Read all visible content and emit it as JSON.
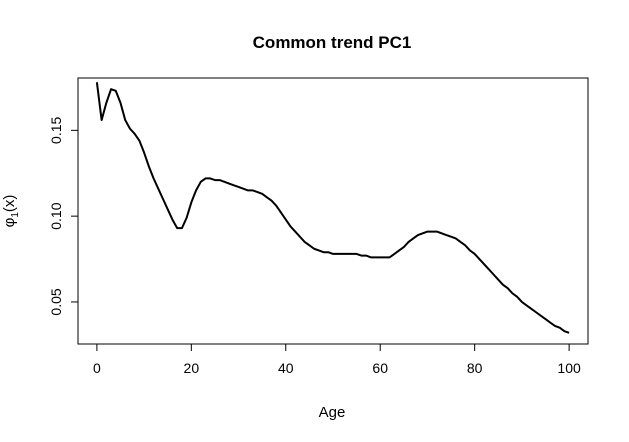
{
  "chart_data": {
    "type": "line",
    "title": "Common trend PC1",
    "xlabel": "Age",
    "ylabel": "φ1(x)",
    "xlim": [
      -4,
      104
    ],
    "ylim": [
      0.0255,
      0.1805
    ],
    "xticks": [
      0,
      20,
      40,
      60,
      80,
      100
    ],
    "yticks": [
      0.05,
      0.1,
      0.15
    ],
    "xtick_labels": [
      "0",
      "20",
      "40",
      "60",
      "80",
      "100"
    ],
    "ytick_labels": [
      "0.05",
      "0.10",
      "0.15"
    ],
    "grid": false,
    "series": [
      {
        "color": "#000000",
        "x": [
          0,
          1,
          2,
          3,
          4,
          5,
          6,
          7,
          8,
          9,
          10,
          11,
          12,
          13,
          14,
          15,
          16,
          17,
          18,
          19,
          20,
          21,
          22,
          23,
          24,
          25,
          26,
          27,
          28,
          29,
          30,
          31,
          32,
          33,
          34,
          35,
          36,
          37,
          38,
          39,
          40,
          41,
          42,
          43,
          44,
          45,
          46,
          47,
          48,
          49,
          50,
          51,
          52,
          53,
          54,
          55,
          56,
          57,
          58,
          59,
          60,
          61,
          62,
          63,
          64,
          65,
          66,
          67,
          68,
          69,
          70,
          71,
          72,
          73,
          74,
          75,
          76,
          77,
          78,
          79,
          80,
          81,
          82,
          83,
          84,
          85,
          86,
          87,
          88,
          89,
          90,
          91,
          92,
          93,
          94,
          95,
          96,
          97,
          98,
          99,
          100
        ],
        "y": [
          0.178,
          0.156,
          0.166,
          0.174,
          0.173,
          0.166,
          0.156,
          0.151,
          0.148,
          0.144,
          0.137,
          0.129,
          0.122,
          0.116,
          0.11,
          0.104,
          0.098,
          0.093,
          0.093,
          0.099,
          0.108,
          0.115,
          0.12,
          0.122,
          0.122,
          0.121,
          0.121,
          0.12,
          0.119,
          0.118,
          0.117,
          0.116,
          0.115,
          0.115,
          0.114,
          0.113,
          0.111,
          0.109,
          0.106,
          0.102,
          0.098,
          0.094,
          0.091,
          0.088,
          0.085,
          0.083,
          0.081,
          0.08,
          0.079,
          0.079,
          0.078,
          0.078,
          0.078,
          0.078,
          0.078,
          0.078,
          0.077,
          0.077,
          0.076,
          0.076,
          0.076,
          0.076,
          0.076,
          0.078,
          0.08,
          0.082,
          0.085,
          0.087,
          0.089,
          0.09,
          0.091,
          0.091,
          0.091,
          0.09,
          0.089,
          0.088,
          0.087,
          0.085,
          0.083,
          0.08,
          0.078,
          0.075,
          0.072,
          0.069,
          0.066,
          0.063,
          0.06,
          0.058,
          0.055,
          0.053,
          0.05,
          0.048,
          0.046,
          0.044,
          0.042,
          0.04,
          0.038,
          0.036,
          0.035,
          0.033,
          0.032
        ]
      }
    ]
  }
}
